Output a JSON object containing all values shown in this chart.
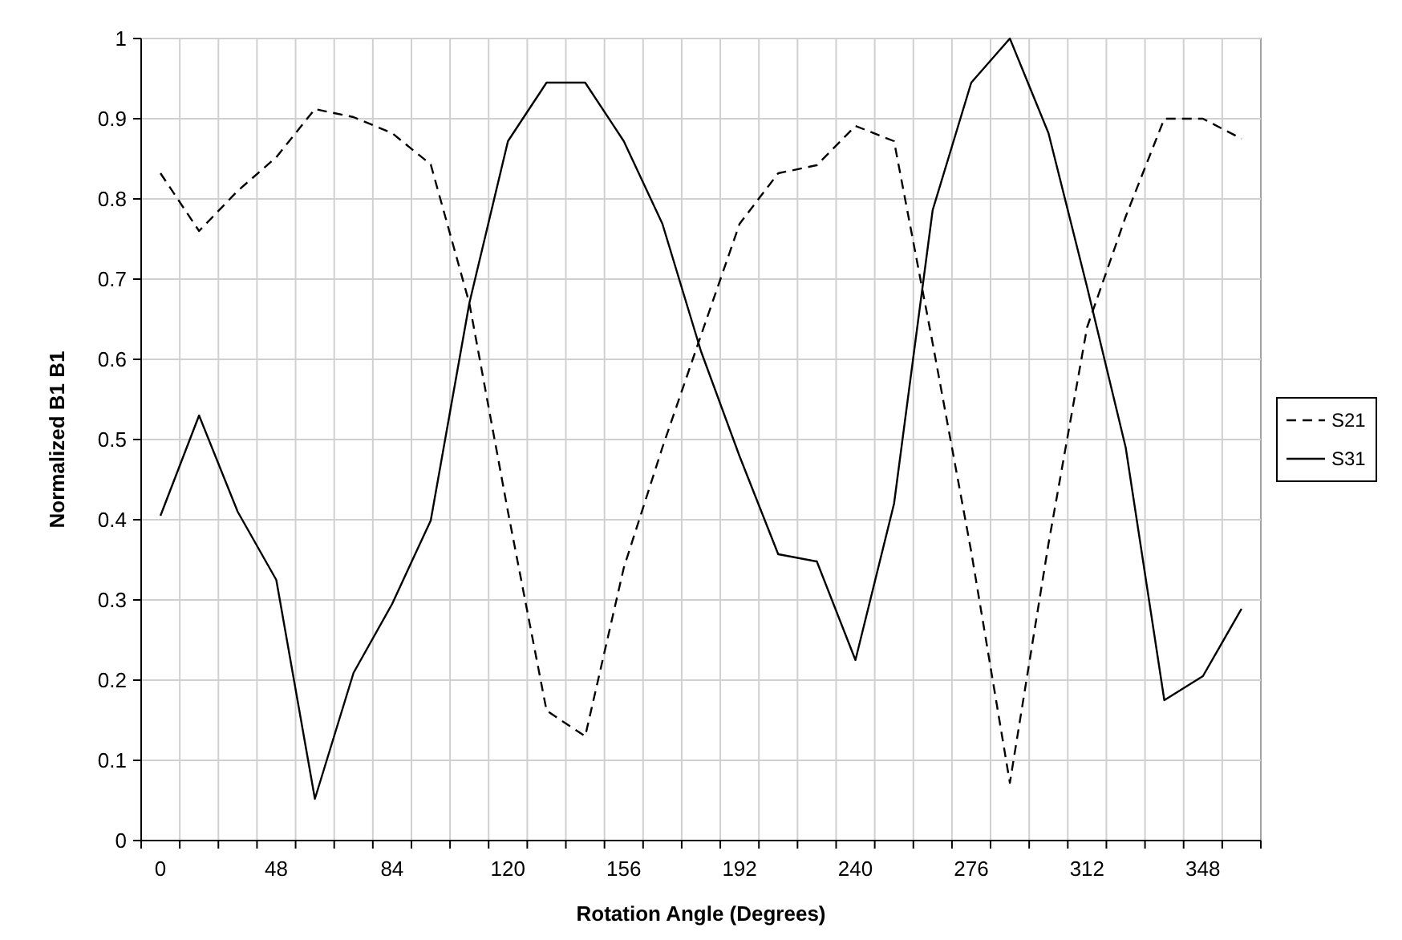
{
  "chart_data": {
    "type": "line",
    "xlabel": "Rotation Angle (Degrees)",
    "ylabel": "Normalized B1 B1",
    "categories": [
      "0",
      null,
      null,
      "48",
      null,
      null,
      "84",
      null,
      null,
      "120",
      null,
      null,
      "156",
      null,
      null,
      "192",
      null,
      null,
      "240",
      null,
      null,
      "276",
      null,
      null,
      "312",
      null,
      null,
      "348",
      null
    ],
    "series": [
      {
        "name": "S21",
        "color": "#000000",
        "line_style": "dashed",
        "values": [
          0.832,
          0.76,
          0.81,
          0.852,
          0.912,
          0.902,
          0.882,
          0.843,
          0.67,
          0.41,
          0.162,
          0.13,
          0.34,
          0.49,
          0.63,
          0.769,
          0.832,
          0.842,
          0.891,
          0.872,
          0.62,
          0.36,
          0.072,
          0.37,
          0.64,
          0.778,
          0.9,
          0.9,
          0.875
        ]
      },
      {
        "name": "S31",
        "color": "#000000",
        "line_style": "solid",
        "values": [
          0.405,
          0.53,
          0.41,
          0.325,
          0.052,
          0.209,
          0.295,
          0.399,
          0.67,
          0.872,
          0.945,
          0.945,
          0.872,
          0.769,
          0.61,
          0.479,
          0.357,
          0.348,
          0.225,
          0.42,
          0.786,
          0.945,
          1.0,
          0.882,
          0.69,
          0.49,
          0.175,
          0.205,
          0.289
        ]
      }
    ],
    "ylim": [
      0,
      1
    ],
    "yticks": [
      0,
      0.1,
      0.2,
      0.3,
      0.4,
      0.5,
      0.6,
      0.7,
      0.8,
      0.9,
      1
    ],
    "grid": true,
    "legend": "right"
  }
}
